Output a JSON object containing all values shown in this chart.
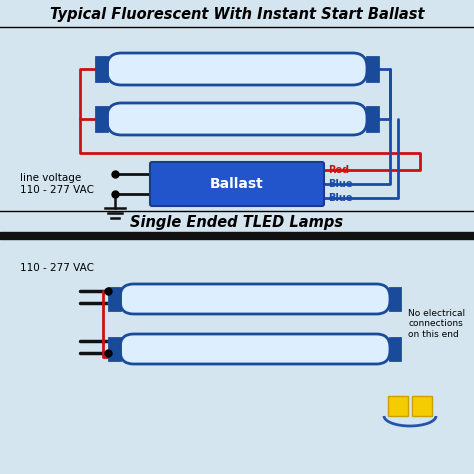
{
  "title_top": "Typical Fluorescent With Instant Start Ballast",
  "title_bottom": "Single Ended TLED Lamps",
  "bg_top": "#d4e5f0",
  "bg_bot": "#d4e5f0",
  "lamp_fill": "#ddeeff",
  "lamp_border": "#1a4a9a",
  "ballast_fill": "#2255cc",
  "ballast_border": "#1a3a8a",
  "ballast_text": "Ballast",
  "white": "#ffffff",
  "red": "#cc1111",
  "blue": "#1a4aaa",
  "dark": "#111111",
  "label_lv": "line voltage\n110 - 277 VAC",
  "label_110": "110 - 277 VAC",
  "label_red": "Red",
  "label_blue": "Blue",
  "label_no_elec": "No electrical\nconnections\non this end",
  "yellow": "#f5cc00",
  "logo_blue": "#2255aa"
}
